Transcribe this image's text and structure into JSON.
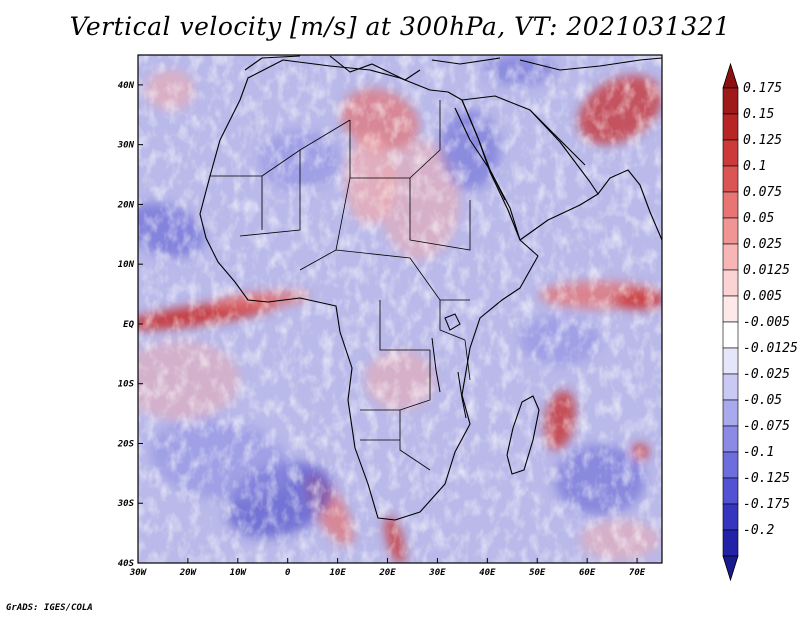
{
  "title": "Vertical velocity [m/s] at 300hPa, VT: 2021031321",
  "credit": "GrADS: IGES/COLA",
  "map": {
    "lon_range": [
      -30,
      75
    ],
    "lat_range": [
      -40,
      45
    ],
    "lon_ticks": [
      {
        "value": -30,
        "label": "30W"
      },
      {
        "value": -20,
        "label": "20W"
      },
      {
        "value": -10,
        "label": "10W"
      },
      {
        "value": 0,
        "label": "0"
      },
      {
        "value": 10,
        "label": "10E"
      },
      {
        "value": 20,
        "label": "20E"
      },
      {
        "value": 30,
        "label": "30E"
      },
      {
        "value": 40,
        "label": "40E"
      },
      {
        "value": 50,
        "label": "50E"
      },
      {
        "value": 60,
        "label": "60E"
      },
      {
        "value": 70,
        "label": "70E"
      }
    ],
    "lat_ticks": [
      {
        "value": 40,
        "label": "40N"
      },
      {
        "value": 30,
        "label": "30N"
      },
      {
        "value": 20,
        "label": "20N"
      },
      {
        "value": 10,
        "label": "10N"
      },
      {
        "value": 0,
        "label": "EQ"
      },
      {
        "value": -10,
        "label": "10S"
      },
      {
        "value": -20,
        "label": "20S"
      },
      {
        "value": -30,
        "label": "30S"
      },
      {
        "value": -40,
        "label": "40S"
      }
    ]
  },
  "colorbar": {
    "levels": [
      {
        "label": "0.175",
        "color": "#a01a1a"
      },
      {
        "label": "0.15",
        "color": "#b82525"
      },
      {
        "label": "0.125",
        "color": "#cc3a3a"
      },
      {
        "label": "0.1",
        "color": "#dc5555"
      },
      {
        "label": "0.075",
        "color": "#e87474"
      },
      {
        "label": "0.05",
        "color": "#f19494"
      },
      {
        "label": "0.025",
        "color": "#f7b5b5"
      },
      {
        "label": "0.0125",
        "color": "#fbd3d3"
      },
      {
        "label": "0.005",
        "color": "#fde9e9"
      },
      {
        "label": "-0.005",
        "color": "#ffffff"
      },
      {
        "label": "-0.0125",
        "color": "#e6e6fb"
      },
      {
        "label": "-0.025",
        "color": "#c9c9f4"
      },
      {
        "label": "-0.05",
        "color": "#a9a9ee"
      },
      {
        "label": "-0.075",
        "color": "#8b8be6"
      },
      {
        "label": "-0.1",
        "color": "#6d6dde"
      },
      {
        "label": "-0.125",
        "color": "#5252d2"
      },
      {
        "label": "-0.175",
        "color": "#3535c0"
      },
      {
        "label": "-0.2",
        "color": "#2222a8"
      }
    ],
    "top_arrow_color": "#8c1010",
    "bottom_arrow_color": "#1a1a90"
  },
  "field_colors": {
    "base": "#b9b9ea",
    "pos": [
      "#f4a8a8",
      "#e47272",
      "#c83232"
    ],
    "neg": [
      "#8f8fe2",
      "#6060d4",
      "#3a3ac2"
    ],
    "coast": "#000000"
  }
}
